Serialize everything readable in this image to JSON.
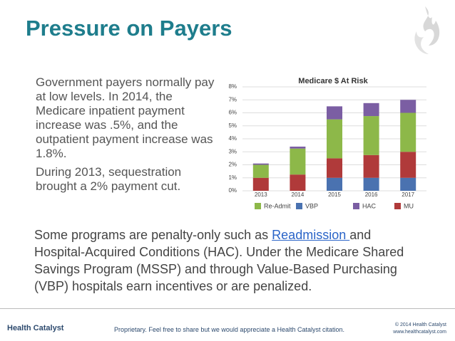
{
  "header": {
    "title": "Pressure on Payers"
  },
  "left_text": {
    "paragraphs": [
      "Government payers normally pay at low levels. In 2014, the Medicare inpatient payment increase was .5%, and the outpatient payment increase was 1.8%.",
      "During 2013, sequestration brought a 2% payment cut."
    ]
  },
  "chart_data": {
    "type": "stacked_bar",
    "title": "Medicare $ At Risk",
    "categories": [
      "2013",
      "2014",
      "2015",
      "2016",
      "2017"
    ],
    "series": [
      {
        "name": "VBP",
        "color": "#4a72b0",
        "values": [
          0,
          0,
          1,
          1,
          1
        ]
      },
      {
        "name": "MU",
        "color": "#b03a3a",
        "values": [
          1,
          1.25,
          1.5,
          1.75,
          2
        ]
      },
      {
        "name": "Re-Admit",
        "color": "#8db849",
        "values": [
          1,
          2,
          3,
          3,
          3
        ]
      },
      {
        "name": "HAC",
        "color": "#7b5ea3",
        "values": [
          0.1,
          0.15,
          1,
          1,
          1
        ]
      }
    ],
    "ylim": [
      0,
      8
    ],
    "yticks": [
      {
        "value": 0,
        "label": "0%"
      },
      {
        "value": 1,
        "label": "1%"
      },
      {
        "value": 2,
        "label": "2%"
      },
      {
        "value": 3,
        "label": "3%"
      },
      {
        "value": 4,
        "label": "4%"
      },
      {
        "value": 5,
        "label": "5%"
      },
      {
        "value": 6,
        "label": "6%"
      },
      {
        "value": 7,
        "label": "7%"
      },
      {
        "value": 8,
        "label": "8%"
      }
    ],
    "grid": true
  },
  "bottom_text": {
    "before": "Some programs are penalty-only such as ",
    "link": "Readmission ",
    "after": "and Hospital-Acquired Conditions (HAC). Under the Medicare Shared Savings Program (MSSP) and through Value-Based Purchasing (VBP) hospitals earn incentives or are penalized."
  },
  "footer": {
    "logo": "Health Catalyst",
    "notice": "Proprietary. Feel free to share but we would appreciate a Health Catalyst citation.",
    "copyright": "© 2014 Health Catalyst",
    "website": "www.healthcatalyst.com"
  }
}
